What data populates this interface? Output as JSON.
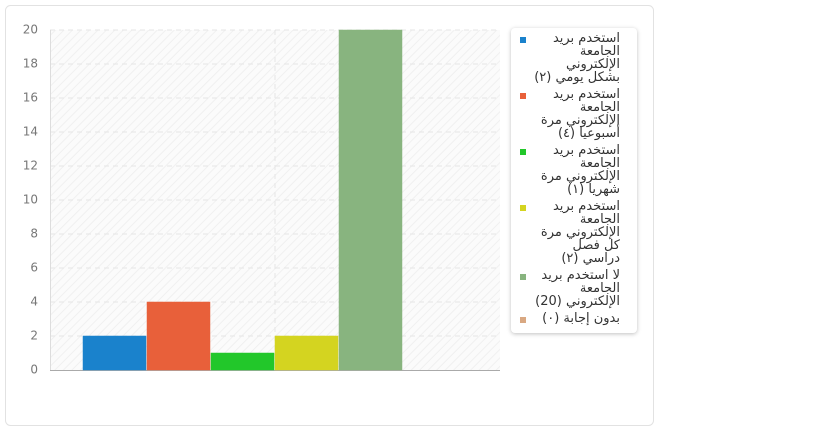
{
  "chart_data": {
    "type": "bar",
    "series": [
      {
        "name": "استخدم بريد الجامعة الإلكتروني بشكل يومي (٢)",
        "color": "#1a82cc",
        "values": [
          2
        ]
      },
      {
        "name": "استخدم بريد الجامعة الإلكتروني مرة أسبوعيا (٤)",
        "color": "#e8603a",
        "values": [
          4
        ]
      },
      {
        "name": "استخدم بريد الجامعة الإلكتروني مرة شهريا (١)",
        "color": "#22c72a",
        "values": [
          1
        ]
      },
      {
        "name": "استخدم بريد الجامعة الإلكتروني مرة كل فصل دراسي (٢)",
        "color": "#d4d420",
        "values": [
          2
        ]
      },
      {
        "name": "لا استخدم بريد الجامعة الإلكتروني (20)",
        "color": "#88b47f",
        "values": [
          20
        ]
      },
      {
        "name": "بدون إجابة (٠)",
        "color": "#d9a882",
        "values": [
          0
        ]
      }
    ],
    "ylim": [
      0,
      20
    ],
    "yticks": [
      0,
      2,
      4,
      6,
      8,
      10,
      12,
      14,
      16,
      18,
      20
    ],
    "grid": true,
    "legend": "right"
  }
}
